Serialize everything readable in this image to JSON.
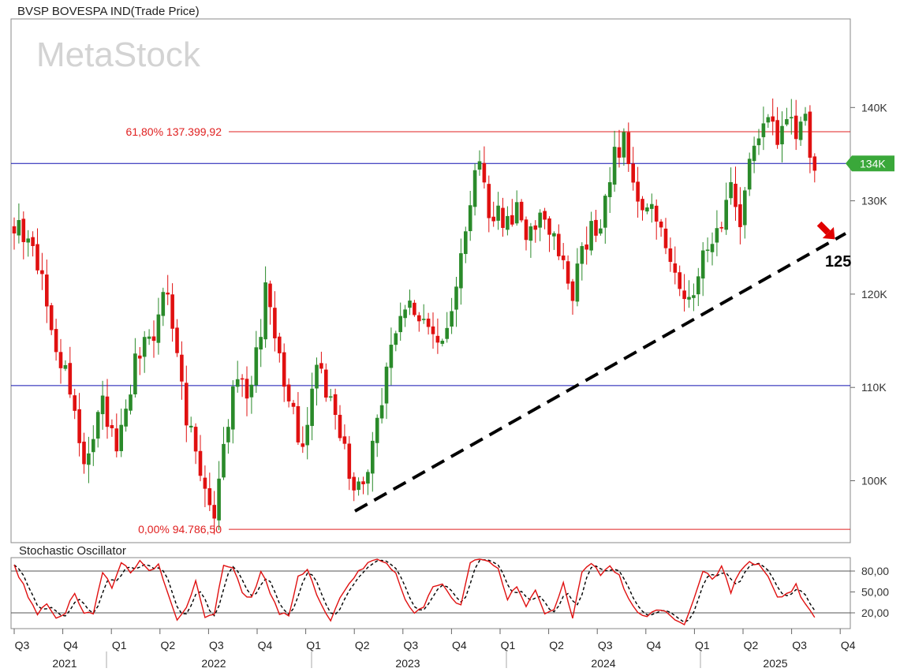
{
  "chart_data": {
    "type": "candlestick",
    "title": "BVSP BOVESPA IND(Trade Price)",
    "watermark": "MetaStock",
    "ylim": [
      93000,
      150000
    ],
    "y_ticks": [
      {
        "value": 100000,
        "label": "100K"
      },
      {
        "value": 110000,
        "label": "110K"
      },
      {
        "value": 120000,
        "label": "120K"
      },
      {
        "value": 130000,
        "label": "130K"
      },
      {
        "value": 140000,
        "label": "140K"
      }
    ],
    "last_price_label": "134K",
    "last_price": 134000,
    "x_quarters": [
      "Q3",
      "Q4",
      "Q1",
      "Q2",
      "Q3",
      "Q4",
      "Q1",
      "Q2",
      "Q3",
      "Q4",
      "Q1",
      "Q2",
      "Q3",
      "Q4",
      "Q1",
      "Q2",
      "Q3",
      "Q4"
    ],
    "x_years": [
      "2021",
      "2022",
      "2023",
      "2024",
      "2025"
    ],
    "fib_levels": [
      {
        "label": "61,80% 137.399,92",
        "value": 137399.92,
        "color": "#e02020"
      },
      {
        "label": "0,00% 94.786,50",
        "value": 94786.5,
        "color": "#e02020"
      }
    ],
    "horizontal_lines": [
      {
        "value": 134000,
        "color": "#1010b0"
      },
      {
        "value": 110200,
        "color": "#1010b0"
      }
    ],
    "trendline": {
      "from": [
        "2023-Q1 end",
        97000
      ],
      "to": [
        "2025-Q3",
        126500
      ],
      "style": "dashed",
      "color": "#000000"
    },
    "trend_label": "125",
    "arrow_color": "#e00000",
    "colors": {
      "up": "#2a8a2a",
      "down": "#e01010",
      "grid": "#808080"
    },
    "anchors": [
      [
        0,
        127000
      ],
      [
        3,
        126000
      ],
      [
        6,
        121000
      ],
      [
        9,
        114000
      ],
      [
        12,
        110000
      ],
      [
        15,
        101000
      ],
      [
        19,
        108000
      ],
      [
        22,
        103000
      ],
      [
        26,
        113000
      ],
      [
        30,
        116000
      ],
      [
        33,
        121000
      ],
      [
        37,
        107000
      ],
      [
        40,
        101000
      ],
      [
        43,
        97000
      ],
      [
        47,
        110000
      ],
      [
        51,
        110000
      ],
      [
        54,
        120000
      ],
      [
        58,
        111000
      ],
      [
        62,
        103000
      ],
      [
        65,
        112000
      ],
      [
        69,
        108000
      ],
      [
        72,
        101000
      ],
      [
        74,
        99000
      ],
      [
        77,
        103000
      ],
      [
        81,
        114000
      ],
      [
        85,
        119000
      ],
      [
        88,
        117000
      ],
      [
        92,
        114000
      ],
      [
        96,
        124000
      ],
      [
        98,
        130000
      ],
      [
        100,
        134000
      ],
      [
        102,
        129000
      ],
      [
        105,
        128000
      ],
      [
        108,
        129000
      ],
      [
        111,
        126000
      ],
      [
        114,
        129000
      ],
      [
        117,
        124000
      ],
      [
        120,
        120000
      ],
      [
        123,
        126000
      ],
      [
        126,
        128000
      ],
      [
        129,
        135000
      ],
      [
        131,
        136500
      ],
      [
        133,
        132000
      ],
      [
        136,
        129000
      ],
      [
        139,
        127000
      ],
      [
        142,
        123000
      ],
      [
        144,
        118500
      ],
      [
        146,
        120000
      ],
      [
        148,
        124000
      ],
      [
        150,
        125000
      ],
      [
        152,
        127000
      ],
      [
        154,
        132000
      ],
      [
        156,
        127000
      ],
      [
        158,
        134000
      ],
      [
        160,
        137500
      ],
      [
        162,
        139000
      ],
      [
        164,
        136000
      ],
      [
        166,
        139500
      ],
      [
        168,
        136000
      ],
      [
        170,
        140000
      ],
      [
        171,
        134000
      ],
      [
        172,
        134000
      ]
    ],
    "stochastic": {
      "title": "Stochastic Oscillator",
      "ylim": [
        0,
        100
      ],
      "y_ticks": [
        {
          "value": 20,
          "label": "20,00"
        },
        {
          "value": 50,
          "label": "50,00"
        },
        {
          "value": 80,
          "label": "80,00"
        }
      ],
      "reference_lines": [
        20,
        80
      ],
      "k_color": "#e01010",
      "d_color": "#000000",
      "k_anchors": [
        [
          0,
          88
        ],
        [
          3,
          45
        ],
        [
          5,
          20
        ],
        [
          7,
          30
        ],
        [
          9,
          15
        ],
        [
          11,
          20
        ],
        [
          13,
          50
        ],
        [
          15,
          20
        ],
        [
          17,
          20
        ],
        [
          19,
          80
        ],
        [
          21,
          55
        ],
        [
          23,
          92
        ],
        [
          25,
          78
        ],
        [
          27,
          95
        ],
        [
          29,
          80
        ],
        [
          31,
          90
        ],
        [
          33,
          50
        ],
        [
          35,
          10
        ],
        [
          37,
          30
        ],
        [
          39,
          65
        ],
        [
          41,
          12
        ],
        [
          43,
          20
        ],
        [
          45,
          90
        ],
        [
          47,
          85
        ],
        [
          49,
          50
        ],
        [
          51,
          40
        ],
        [
          53,
          80
        ],
        [
          55,
          50
        ],
        [
          57,
          20
        ],
        [
          59,
          15
        ],
        [
          61,
          70
        ],
        [
          63,
          85
        ],
        [
          66,
          30
        ],
        [
          68,
          10
        ],
        [
          70,
          40
        ],
        [
          72,
          60
        ],
        [
          74,
          80
        ],
        [
          76,
          90
        ],
        [
          78,
          95
        ],
        [
          80,
          90
        ],
        [
          82,
          80
        ],
        [
          84,
          40
        ],
        [
          86,
          20
        ],
        [
          88,
          30
        ],
        [
          90,
          55
        ],
        [
          92,
          60
        ],
        [
          94,
          40
        ],
        [
          96,
          30
        ],
        [
          98,
          92
        ],
        [
          100,
          95
        ],
        [
          102,
          93
        ],
        [
          104,
          85
        ],
        [
          106,
          40
        ],
        [
          108,
          60
        ],
        [
          110,
          30
        ],
        [
          112,
          50
        ],
        [
          114,
          20
        ],
        [
          116,
          25
        ],
        [
          118,
          65
        ],
        [
          120,
          10
        ],
        [
          122,
          80
        ],
        [
          124,
          90
        ],
        [
          126,
          75
        ],
        [
          128,
          85
        ],
        [
          130,
          75
        ],
        [
          132,
          40
        ],
        [
          134,
          20
        ],
        [
          136,
          15
        ],
        [
          138,
          25
        ],
        [
          140,
          25
        ],
        [
          142,
          10
        ],
        [
          144,
          5
        ],
        [
          146,
          40
        ],
        [
          148,
          80
        ],
        [
          150,
          70
        ],
        [
          152,
          85
        ],
        [
          154,
          50
        ],
        [
          156,
          80
        ],
        [
          158,
          92
        ],
        [
          160,
          90
        ],
        [
          162,
          70
        ],
        [
          164,
          40
        ],
        [
          166,
          45
        ],
        [
          168,
          60
        ],
        [
          170,
          30
        ],
        [
          172,
          12
        ]
      ]
    }
  }
}
